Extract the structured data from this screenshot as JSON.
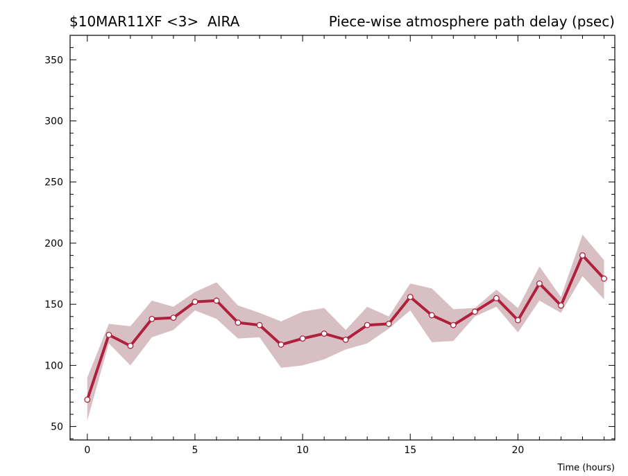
{
  "header": {
    "left": "$10MAR11XF <3>  AIRA",
    "right": "Piece-wise atmosphere path delay (psec)"
  },
  "chart_data": {
    "type": "line",
    "title": "Piece-wise atmosphere path delay (psec)",
    "xlabel": "Time (hours)",
    "ylabel": "",
    "xlim": [
      -0.8,
      24.5
    ],
    "ylim": [
      39,
      370
    ],
    "x_ticks": [
      0,
      5,
      10,
      15,
      20
    ],
    "y_ticks": [
      50,
      100,
      150,
      200,
      250,
      300,
      350
    ],
    "grid": false,
    "colors": {
      "line": "#b0203c",
      "band": "#d8bfc4",
      "marker_fill": "#ffffff"
    },
    "x": [
      0,
      1,
      2,
      3,
      4,
      5,
      6,
      7,
      8,
      9,
      10,
      11,
      12,
      13,
      14,
      15,
      16,
      17,
      18,
      19,
      20,
      21,
      22,
      23,
      24
    ],
    "series": [
      {
        "values": [
          72,
          125,
          116,
          138,
          139,
          152,
          153,
          135,
          133,
          117,
          122,
          126,
          121,
          133,
          134,
          156,
          141,
          133,
          144,
          155,
          137,
          167,
          149,
          190,
          171
        ],
        "band_upper": [
          90,
          134,
          132,
          153,
          148,
          160,
          168,
          149,
          143,
          136,
          144,
          147,
          129,
          148,
          140,
          167,
          163,
          146,
          147,
          162,
          147,
          181,
          156,
          207,
          186
        ],
        "band_lower": [
          55,
          118,
          100,
          123,
          129,
          145,
          138,
          122,
          123,
          98,
          100,
          105,
          113,
          118,
          130,
          145,
          119,
          120,
          140,
          148,
          127,
          153,
          143,
          173,
          154
        ]
      }
    ]
  }
}
